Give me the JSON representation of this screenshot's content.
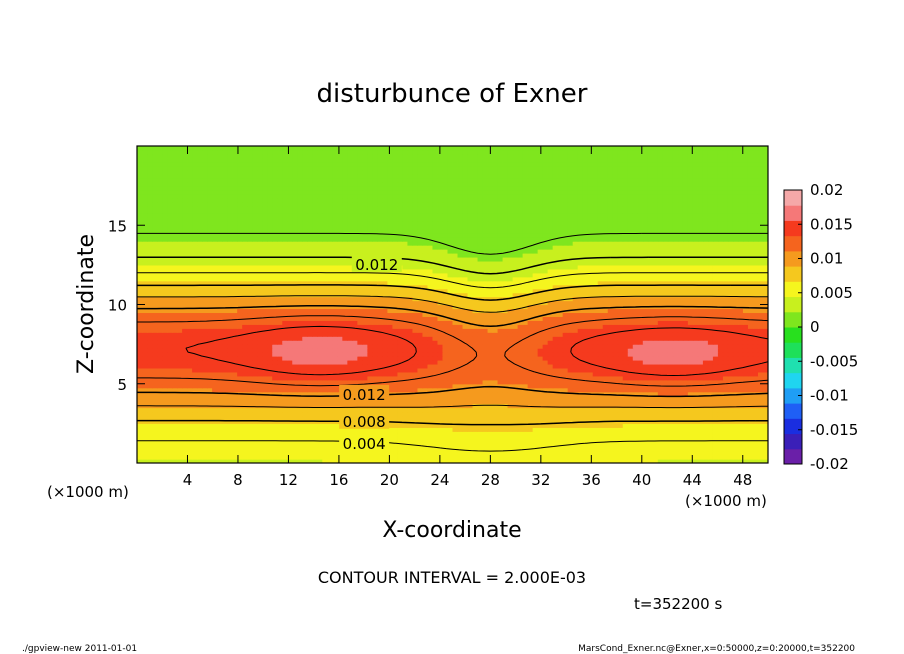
{
  "chart_data": {
    "type": "contour",
    "title": "disturbunce of Exner",
    "xlabel": "X-coordinate",
    "ylabel": "Z-coordinate",
    "x_unit_left": "(×1000 m)",
    "x_unit_right": "(×1000 m)",
    "xlim": [
      0,
      50
    ],
    "ylim": [
      0,
      20
    ],
    "x_ticks": [
      4,
      8,
      12,
      16,
      20,
      24,
      28,
      32,
      36,
      40,
      44,
      48
    ],
    "y_ticks": [
      5,
      10,
      15
    ],
    "contour_labels": [
      {
        "text": "0.012",
        "x": 19,
        "z": 12.5
      },
      {
        "text": "0.012",
        "x": 18,
        "z": 4.3
      },
      {
        "text": "0.008",
        "x": 18,
        "z": 2.6
      },
      {
        "text": "0.004",
        "x": 18,
        "z": 1.2
      }
    ],
    "contour_interval_text": "CONTOUR INTERVAL = 2.000E-03",
    "time_text": "t=352200 s",
    "colorbar": {
      "ticks": [
        "0.02",
        "0.015",
        "0.01",
        "0.005",
        "0",
        "-0.005",
        "-0.01",
        "-0.015",
        "-0.02"
      ],
      "levels": [
        -0.02,
        -0.0175,
        -0.015,
        -0.0125,
        -0.01,
        -0.0075,
        -0.005,
        -0.0025,
        0,
        0.0025,
        0.005,
        0.0075,
        0.01,
        0.0125,
        0.015,
        0.0175,
        0.02
      ],
      "colors": [
        "#6a1fa8",
        "#3a1fb8",
        "#1a2ee0",
        "#1f5ff5",
        "#1f9ef5",
        "#1fd5f0",
        "#1fe0b0",
        "#1ee05a",
        "#28e01e",
        "#7fe61e",
        "#c8f01e",
        "#f5f51e",
        "#f5c81e",
        "#f59a1e",
        "#f5641e",
        "#f53a1e",
        "#f57878",
        "#f5a8a8"
      ]
    }
  },
  "footer": {
    "left": "./gpview-new   2011-01-01",
    "right": "MarsCond_Exner.nc@Exner,x=0:50000,z=0:20000,t=352200"
  }
}
